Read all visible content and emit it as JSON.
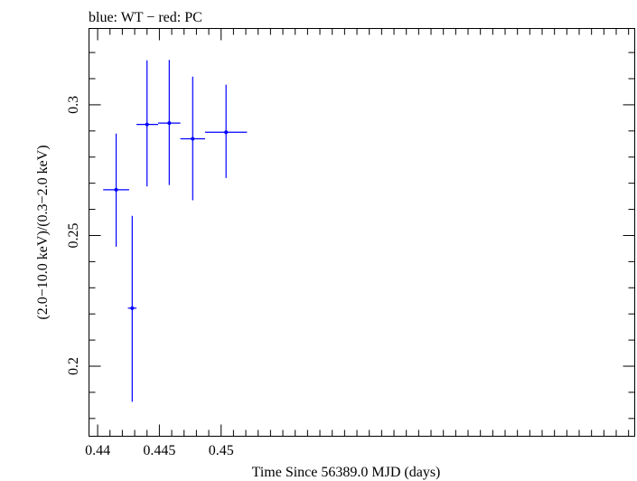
{
  "chart_data": {
    "type": "scatter",
    "title": "blue: WT − red: PC",
    "xlabel": "Time Since 56389.0 MJD (days)",
    "ylabel": "(2.0−10.0 keV)/(0.3−2.0 keV)",
    "xlim": [
      0.4393,
      0.4835
    ],
    "ylim": [
      0.1732,
      0.3292
    ],
    "x_ticks": [
      {
        "value": 0.44,
        "label": "0.44"
      },
      {
        "value": 0.445,
        "label": "0.445"
      },
      {
        "value": 0.45,
        "label": "0.45"
      }
    ],
    "y_ticks": [
      {
        "value": 0.2,
        "label": "0.2"
      },
      {
        "value": 0.25,
        "label": "0.25"
      },
      {
        "value": 0.3,
        "label": "0.3"
      }
    ],
    "x_minor_step": 0.001,
    "y_minor_step": 0.01,
    "grid": false,
    "legend": "none",
    "series": [
      {
        "color": "#0000ff",
        "points": [
          {
            "x": 0.4415,
            "y": 0.2675,
            "xerr_lo": 0.00105,
            "xerr_hi": 0.00105,
            "yerr_lo": 0.0218,
            "yerr_hi": 0.0215
          },
          {
            "x": 0.4428,
            "y": 0.2222,
            "xerr_lo": 0.00035,
            "xerr_hi": 0.00035,
            "yerr_lo": 0.0358,
            "yerr_hi": 0.0353
          },
          {
            "x": 0.444,
            "y": 0.2925,
            "xerr_lo": 0.00085,
            "xerr_hi": 0.0009,
            "yerr_lo": 0.0237,
            "yerr_hi": 0.0245
          },
          {
            "x": 0.4458,
            "y": 0.293,
            "xerr_lo": 0.0009,
            "xerr_hi": 0.0009,
            "yerr_lo": 0.0237,
            "yerr_hi": 0.0242
          },
          {
            "x": 0.4477,
            "y": 0.287,
            "xerr_lo": 0.001,
            "xerr_hi": 0.001,
            "yerr_lo": 0.0235,
            "yerr_hi": 0.0238
          },
          {
            "x": 0.4504,
            "y": 0.2895,
            "xerr_lo": 0.0017,
            "xerr_hi": 0.0017,
            "yerr_lo": 0.0175,
            "yerr_hi": 0.0182
          }
        ]
      }
    ]
  }
}
